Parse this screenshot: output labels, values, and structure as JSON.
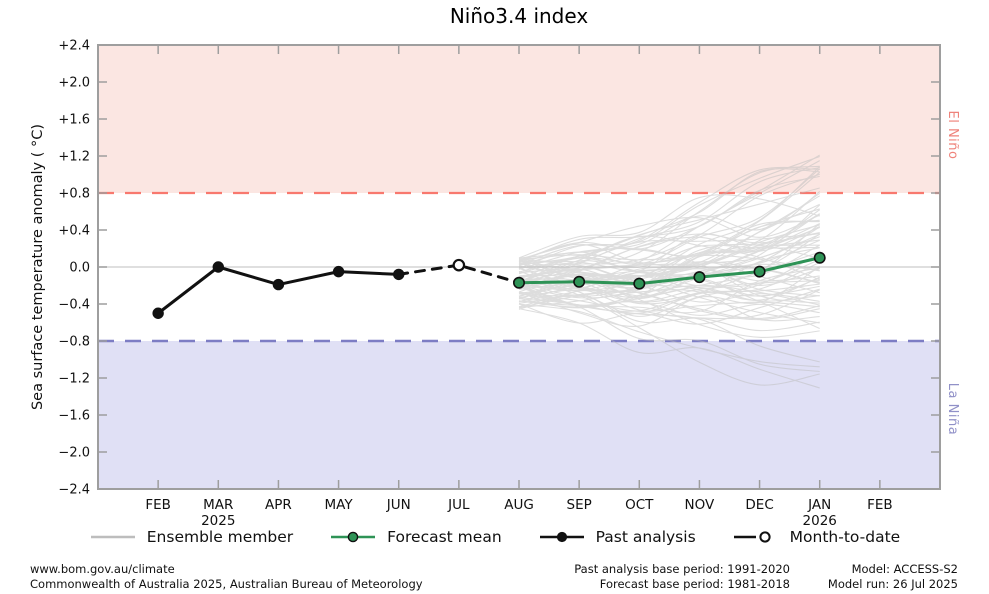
{
  "colors": {
    "el_nino_fill": "#fbe6e2",
    "el_nino_line": "#f8786e",
    "el_nino_text": "#ef837b",
    "la_nina_fill": "#e0e0f5",
    "la_nina_line": "#7d7dc4",
    "la_nina_text": "#9191c8",
    "forecast_green": "#2e9356",
    "ensemble_gray": "#bdbdbd",
    "past_black": "#111111",
    "frame_gray": "#9e9e9e",
    "zero_line": "#cccccc",
    "tick_text": "#111111"
  },
  "chart_data": {
    "type": "line",
    "title": "Niño3.4 index",
    "ylabel": "Sea surface temperature anomaly ( °C)",
    "xlabel": "",
    "ylim": [
      -2.4,
      2.4
    ],
    "grid": "zero-line-only",
    "legend_position": "bottom",
    "yticks": [
      2.4,
      2.0,
      1.6,
      1.2,
      0.8,
      0.4,
      0.0,
      -0.4,
      -0.8,
      -1.2,
      -1.6,
      -2.0,
      -2.4
    ],
    "ytick_labels": [
      "+2.4",
      "+2.0",
      "+1.6",
      "+1.2",
      "+0.8",
      "+0.4",
      "0.0",
      "−0.4",
      "−0.8",
      "−1.2",
      "−1.6",
      "−2.0",
      "−2.4"
    ],
    "categories": [
      "FEB",
      "MAR",
      "APR",
      "MAY",
      "JUN",
      "JUL",
      "AUG",
      "SEP",
      "OCT",
      "NOV",
      "DEC",
      "JAN",
      "FEB"
    ],
    "year_labels": [
      {
        "month_index": 1,
        "label": "2025"
      },
      {
        "month_index": 11,
        "label": "2026"
      }
    ],
    "threshold_lines": [
      {
        "label": "El Niño",
        "value": 0.8
      },
      {
        "label": "La Niña",
        "value": -0.8
      }
    ],
    "series": [
      {
        "key": "past",
        "name": "Past analysis",
        "line": "solid",
        "color_key": "past_black",
        "marker": "filled",
        "month_indices": [
          0,
          1,
          2,
          3,
          4
        ],
        "values": [
          -0.5,
          0.0,
          -0.19,
          -0.05,
          -0.08
        ]
      },
      {
        "key": "mtd",
        "name": "Month-to-date",
        "line": "dashed",
        "color_key": "past_black",
        "marker": "open",
        "marker_point_index": 1,
        "month_indices": [
          4,
          5,
          6
        ],
        "values": [
          -0.08,
          0.02,
          -0.17
        ]
      },
      {
        "key": "forecast",
        "name": "Forecast mean",
        "line": "solid",
        "color_key": "forecast_green",
        "marker": "filled-green",
        "month_indices": [
          6,
          7,
          8,
          9,
          10,
          11
        ],
        "values": [
          -0.17,
          -0.16,
          -0.18,
          -0.11,
          -0.05,
          0.1
        ]
      }
    ],
    "ensemble": {
      "name": "Ensemble member",
      "member_count": 85,
      "month_indices": [
        6,
        7,
        8,
        9,
        10,
        11
      ],
      "start_mean": -0.18,
      "start_spread": 0.28,
      "step_spread": [
        0.24,
        0.27,
        0.3,
        0.33,
        0.36
      ],
      "trend": [
        0.01,
        -0.02,
        0.07,
        0.06,
        0.15
      ],
      "value_min": -1.32,
      "value_max": 1.22,
      "seed": 11
    }
  },
  "annotations": {
    "el_nino": "El Niño",
    "la_nina": "La Niña"
  },
  "legend": {
    "items": [
      {
        "key": "ensemble",
        "label": "Ensemble member"
      },
      {
        "key": "forecast",
        "label": "Forecast mean"
      },
      {
        "key": "past",
        "label": "Past analysis"
      },
      {
        "key": "mtd",
        "label": "Month-to-date"
      }
    ]
  },
  "footer": {
    "left_line1": "www.bom.gov.au/climate",
    "left_line2": "Commonwealth of Australia 2025, Australian Bureau of Meteorology",
    "mid_line1": "Past analysis base period: 1991-2020",
    "mid_line2": "Forecast base period: 1981-2018",
    "right_line1": "Model: ACCESS-S2",
    "right_line2": "Model run: 26 Jul 2025"
  }
}
